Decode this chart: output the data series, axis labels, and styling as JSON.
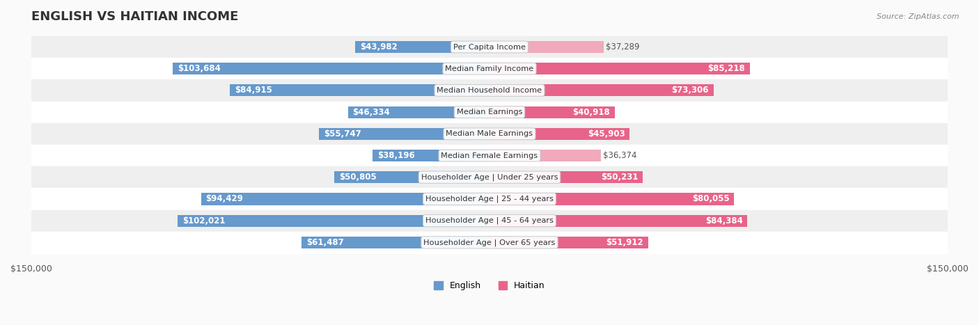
{
  "title": "ENGLISH VS HAITIAN INCOME",
  "source": "Source: ZipAtlas.com",
  "categories": [
    "Per Capita Income",
    "Median Family Income",
    "Median Household Income",
    "Median Earnings",
    "Median Male Earnings",
    "Median Female Earnings",
    "Householder Age | Under 25 years",
    "Householder Age | 25 - 44 years",
    "Householder Age | 45 - 64 years",
    "Householder Age | Over 65 years"
  ],
  "english_values": [
    43982,
    103684,
    84915,
    46334,
    55747,
    38196,
    50805,
    94429,
    102021,
    61487
  ],
  "haitian_values": [
    37289,
    85218,
    73306,
    40918,
    45903,
    36374,
    50231,
    80055,
    84384,
    51912
  ],
  "english_labels": [
    "$43,982",
    "$103,684",
    "$84,915",
    "$46,334",
    "$55,747",
    "$38,196",
    "$50,805",
    "$94,429",
    "$102,021",
    "$61,487"
  ],
  "haitian_labels": [
    "$37,289",
    "$85,218",
    "$73,306",
    "$40,918",
    "$45,903",
    "$36,374",
    "$50,231",
    "$80,055",
    "$84,384",
    "$51,912"
  ],
  "max_value": 150000,
  "english_color_strong": "#6699CC",
  "english_color_light": "#AABFDD",
  "haitian_color_strong": "#E8638A",
  "haitian_color_light": "#F0AABB",
  "background_color": "#F5F5F5",
  "row_bg_color": "#EFEFEF",
  "row_bg_color2": "#FFFFFF",
  "label_fontsize": 8.5,
  "title_fontsize": 13,
  "axis_label_fontsize": 9,
  "legend_fontsize": 9,
  "xlim": 150000,
  "bar_height": 0.55
}
